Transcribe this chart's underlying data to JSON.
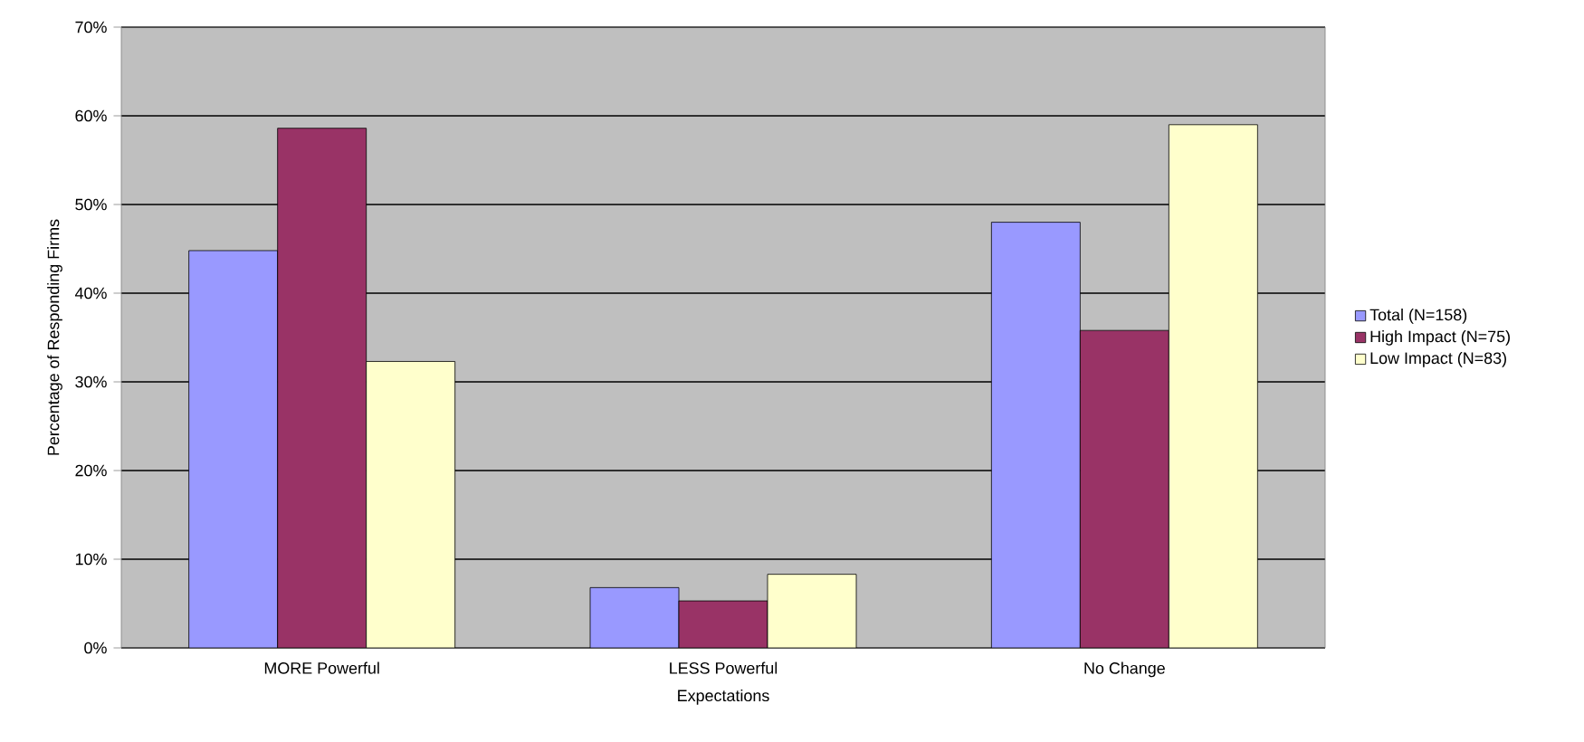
{
  "chart_data": {
    "type": "bar",
    "xlabel": "Expectations",
    "ylabel": "Percentage of Responding Firms",
    "categories": [
      "MORE Powerful",
      "LESS Powerful",
      "No Change"
    ],
    "series": [
      {
        "name": "Total (N=158)",
        "color": "#9999ff",
        "values": [
          44.8,
          6.8,
          48.0
        ]
      },
      {
        "name": "High Impact (N=75)",
        "color": "#993366",
        "values": [
          58.6,
          5.3,
          35.8
        ]
      },
      {
        "name": "Low Impact (N=83)",
        "color": "#ffffcc",
        "values": [
          32.3,
          8.3,
          59.0
        ]
      }
    ],
    "ylim": [
      0,
      70
    ],
    "yticks": [
      {
        "value": 0,
        "label": "0%"
      },
      {
        "value": 10,
        "label": "10%"
      },
      {
        "value": 20,
        "label": "20%"
      },
      {
        "value": 30,
        "label": "30%"
      },
      {
        "value": 40,
        "label": "40%"
      },
      {
        "value": 50,
        "label": "50%"
      },
      {
        "value": 60,
        "label": "60%"
      },
      {
        "value": 70,
        "label": "70%"
      }
    ],
    "grid": "y",
    "legend": "right"
  }
}
